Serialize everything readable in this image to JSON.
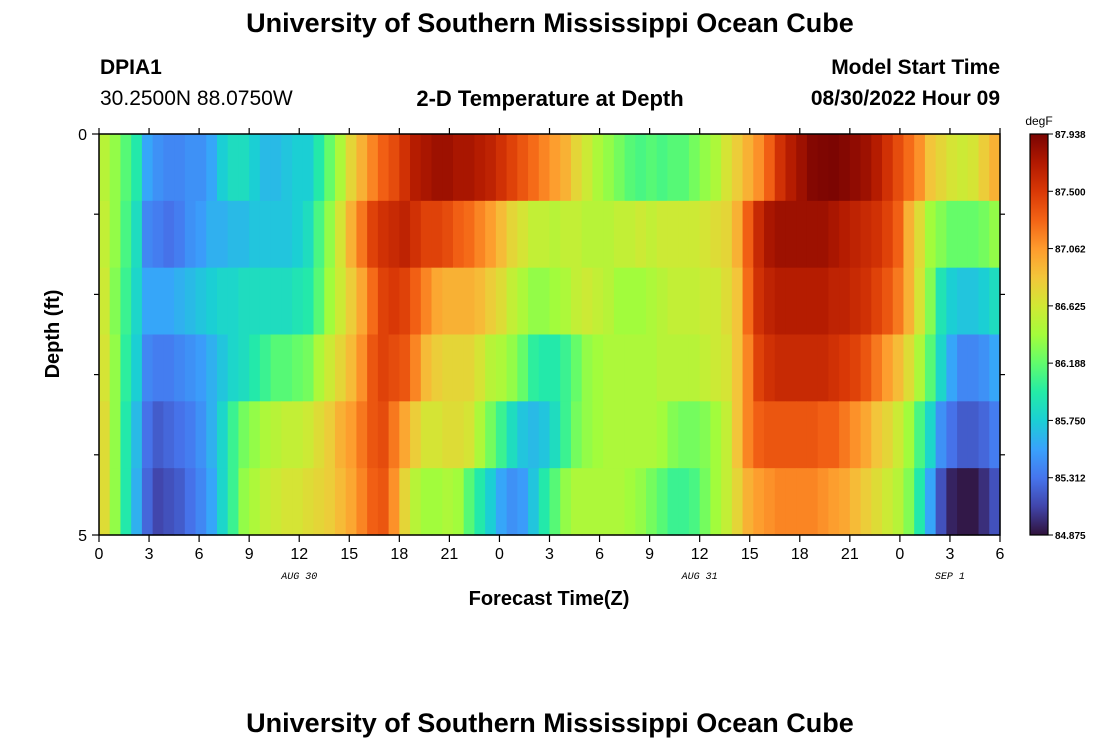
{
  "page": {
    "title_top": "University of Southern Mississippi Ocean Cube",
    "title_bottom": "University of Southern Mississippi Ocean Cube",
    "station_id": "DPIA1",
    "station_coords": "30.2500N  88.0750W",
    "plot_title": "2-D Temperature at Depth",
    "model_start_label": "Model Start Time",
    "model_start_value": "08/30/2022 Hour 09"
  },
  "colors": {
    "scale": [
      "#30123b",
      "#4145ab",
      "#4675ed",
      "#39a2fc",
      "#1bcfd4",
      "#24eca6",
      "#61fc6c",
      "#a4fc3b",
      "#d1e834",
      "#f3c63a",
      "#fe9b2d",
      "#f36315",
      "#d93806",
      "#b11901",
      "#7a0402"
    ]
  },
  "chart_data": {
    "type": "heatmap",
    "xlabel": "Forecast Time(Z)",
    "ylabel": "Depth (ft)",
    "x_start_hour": 0,
    "x_end_hour": 54,
    "x_ticks": [
      {
        "h": 0,
        "label": "0"
      },
      {
        "h": 3,
        "label": "3"
      },
      {
        "h": 6,
        "label": "6"
      },
      {
        "h": 9,
        "label": "9"
      },
      {
        "h": 12,
        "label": "12"
      },
      {
        "h": 15,
        "label": "15"
      },
      {
        "h": 18,
        "label": "18"
      },
      {
        "h": 21,
        "label": "21"
      },
      {
        "h": 24,
        "label": "0"
      },
      {
        "h": 27,
        "label": "3"
      },
      {
        "h": 30,
        "label": "6"
      },
      {
        "h": 33,
        "label": "9"
      },
      {
        "h": 36,
        "label": "12"
      },
      {
        "h": 39,
        "label": "15"
      },
      {
        "h": 42,
        "label": "18"
      },
      {
        "h": 45,
        "label": "21"
      },
      {
        "h": 48,
        "label": "0"
      },
      {
        "h": 51,
        "label": "3"
      },
      {
        "h": 54,
        "label": "6"
      }
    ],
    "day_labels": [
      {
        "h": 12,
        "label": "AUG 30"
      },
      {
        "h": 36,
        "label": "AUG 31"
      },
      {
        "h": 51,
        "label": "SEP 1"
      }
    ],
    "y_range": [
      0,
      5
    ],
    "y_ticks": [
      {
        "v": 0,
        "label": "0"
      },
      {
        "v": 5,
        "label": "5"
      }
    ],
    "y_minor_ticks": [
      1,
      2,
      3,
      4
    ],
    "colorbar": {
      "unit": "degF",
      "min": 84.875,
      "max": 87.938,
      "labels": [
        "87.938",
        "87.500",
        "87.062",
        "86.625",
        "86.188",
        "85.750",
        "85.312",
        "84.875"
      ]
    },
    "depth_rows": [
      {
        "depth": 0,
        "values": [
          86.5,
          86.35,
          86.15,
          85.95,
          85.55,
          85.45,
          85.4,
          85.4,
          85.45,
          85.45,
          85.55,
          85.75,
          85.85,
          85.85,
          85.75,
          85.65,
          85.65,
          85.7,
          85.75,
          85.75,
          85.95,
          86.2,
          86.45,
          86.75,
          86.95,
          87.15,
          87.3,
          87.4,
          87.55,
          87.7,
          87.75,
          87.8,
          87.8,
          87.75,
          87.75,
          87.7,
          87.65,
          87.55,
          87.45,
          87.35,
          87.25,
          87.15,
          87.05,
          86.95,
          86.75,
          86.6,
          86.45,
          86.35,
          86.25,
          86.15,
          86.1,
          86.15,
          86.1,
          86.15,
          86.15,
          86.25,
          86.35,
          86.45,
          86.65,
          86.8,
          86.95,
          87.1,
          87.3,
          87.55,
          87.7,
          87.8,
          87.9,
          87.92,
          87.93,
          87.9,
          87.85,
          87.8,
          87.7,
          87.55,
          87.4,
          87.25,
          87.1,
          86.85,
          86.75,
          86.65,
          86.6,
          86.65,
          86.8,
          86.95
        ]
      },
      {
        "depth": 1,
        "values": [
          86.55,
          86.35,
          86.1,
          85.85,
          85.4,
          85.35,
          85.3,
          85.35,
          85.45,
          85.5,
          85.6,
          85.6,
          85.65,
          85.65,
          85.7,
          85.7,
          85.7,
          85.7,
          85.75,
          85.85,
          86.1,
          86.35,
          86.65,
          86.95,
          87.2,
          87.45,
          87.55,
          87.6,
          87.65,
          87.55,
          87.45,
          87.45,
          87.4,
          87.3,
          87.25,
          87.15,
          87.05,
          86.9,
          86.75,
          86.65,
          86.55,
          86.55,
          86.5,
          86.55,
          86.55,
          86.5,
          86.5,
          86.5,
          86.55,
          86.55,
          86.6,
          86.55,
          86.6,
          86.6,
          86.6,
          86.6,
          86.65,
          86.7,
          86.75,
          86.95,
          87.3,
          87.6,
          87.75,
          87.8,
          87.8,
          87.8,
          87.8,
          87.8,
          87.75,
          87.7,
          87.65,
          87.6,
          87.55,
          87.45,
          87.3,
          86.95,
          86.7,
          86.4,
          86.3,
          86.2,
          86.2,
          86.2,
          86.25,
          86.35
        ]
      },
      {
        "depth": 2,
        "values": [
          86.6,
          86.3,
          86.05,
          85.8,
          85.55,
          85.55,
          85.55,
          85.6,
          85.65,
          85.7,
          85.75,
          85.8,
          85.8,
          85.85,
          85.85,
          85.85,
          85.85,
          85.85,
          85.9,
          85.95,
          86.15,
          86.4,
          86.6,
          86.8,
          87.0,
          87.25,
          87.45,
          87.5,
          87.45,
          87.3,
          87.15,
          87.0,
          86.95,
          86.95,
          86.95,
          86.9,
          86.8,
          86.7,
          86.55,
          86.45,
          86.35,
          86.35,
          86.4,
          86.45,
          86.55,
          86.6,
          86.55,
          86.5,
          86.4,
          86.4,
          86.4,
          86.45,
          86.5,
          86.55,
          86.55,
          86.55,
          86.6,
          86.6,
          86.7,
          86.85,
          87.25,
          87.55,
          87.65,
          87.7,
          87.7,
          87.7,
          87.7,
          87.7,
          87.65,
          87.65,
          87.6,
          87.55,
          87.45,
          87.35,
          87.2,
          86.95,
          86.65,
          86.3,
          85.9,
          85.75,
          85.7,
          85.7,
          85.75,
          85.85
        ]
      },
      {
        "depth": 3,
        "values": [
          86.65,
          86.35,
          86.0,
          85.75,
          85.4,
          85.35,
          85.35,
          85.4,
          85.45,
          85.5,
          85.6,
          85.7,
          85.8,
          85.85,
          85.95,
          86.05,
          86.15,
          86.15,
          86.2,
          86.25,
          86.45,
          86.6,
          86.75,
          86.9,
          87.1,
          87.35,
          87.45,
          87.4,
          87.35,
          87.15,
          86.9,
          86.8,
          86.75,
          86.75,
          86.75,
          86.65,
          86.5,
          86.45,
          86.35,
          86.2,
          86.0,
          85.95,
          85.95,
          86.05,
          86.2,
          86.35,
          86.4,
          86.45,
          86.45,
          86.45,
          86.45,
          86.45,
          86.5,
          86.5,
          86.5,
          86.5,
          86.55,
          86.6,
          86.65,
          86.85,
          87.15,
          87.45,
          87.55,
          87.6,
          87.6,
          87.6,
          87.6,
          87.6,
          87.55,
          87.5,
          87.45,
          87.35,
          87.2,
          87.05,
          86.9,
          86.7,
          86.45,
          86.15,
          85.8,
          85.55,
          85.4,
          85.4,
          85.45,
          85.55
        ]
      },
      {
        "depth": 4,
        "values": [
          86.7,
          86.35,
          85.95,
          85.65,
          85.3,
          85.2,
          85.25,
          85.3,
          85.35,
          85.45,
          85.6,
          85.8,
          86.05,
          86.25,
          86.35,
          86.45,
          86.5,
          86.55,
          86.55,
          86.6,
          86.7,
          86.8,
          86.95,
          87.05,
          87.2,
          87.35,
          87.4,
          87.2,
          87.0,
          86.8,
          86.65,
          86.65,
          86.7,
          86.7,
          86.65,
          86.45,
          86.25,
          86.05,
          85.85,
          85.7,
          85.65,
          85.7,
          85.85,
          86.05,
          86.25,
          86.35,
          86.4,
          86.45,
          86.45,
          86.45,
          86.45,
          86.45,
          86.4,
          86.3,
          86.25,
          86.25,
          86.3,
          86.4,
          86.55,
          86.85,
          87.15,
          87.3,
          87.35,
          87.35,
          87.35,
          87.35,
          87.35,
          87.3,
          87.3,
          87.2,
          87.1,
          87.0,
          86.85,
          86.75,
          86.6,
          86.4,
          86.1,
          85.8,
          85.45,
          85.3,
          85.2,
          85.2,
          85.25,
          85.35
        ]
      },
      {
        "depth": 5,
        "values": [
          86.7,
          86.35,
          85.95,
          85.6,
          85.25,
          85.1,
          85.15,
          85.2,
          85.3,
          85.4,
          85.55,
          85.8,
          86.05,
          86.35,
          86.45,
          86.55,
          86.6,
          86.65,
          86.65,
          86.7,
          86.75,
          86.8,
          86.9,
          87.0,
          87.15,
          87.3,
          87.35,
          87.1,
          86.75,
          86.5,
          86.4,
          86.4,
          86.45,
          86.4,
          86.15,
          85.95,
          85.75,
          85.55,
          85.45,
          85.5,
          85.7,
          85.95,
          86.15,
          86.35,
          86.45,
          86.45,
          86.45,
          86.45,
          86.45,
          86.4,
          86.35,
          86.25,
          86.15,
          86.05,
          86.05,
          86.1,
          86.25,
          86.4,
          86.55,
          86.75,
          86.95,
          87.05,
          87.1,
          87.15,
          87.15,
          87.15,
          87.15,
          87.1,
          87.05,
          87.0,
          86.9,
          86.8,
          86.7,
          86.6,
          86.5,
          86.3,
          85.95,
          85.55,
          85.15,
          84.95,
          84.9,
          84.9,
          85.0,
          85.15
        ]
      }
    ]
  }
}
